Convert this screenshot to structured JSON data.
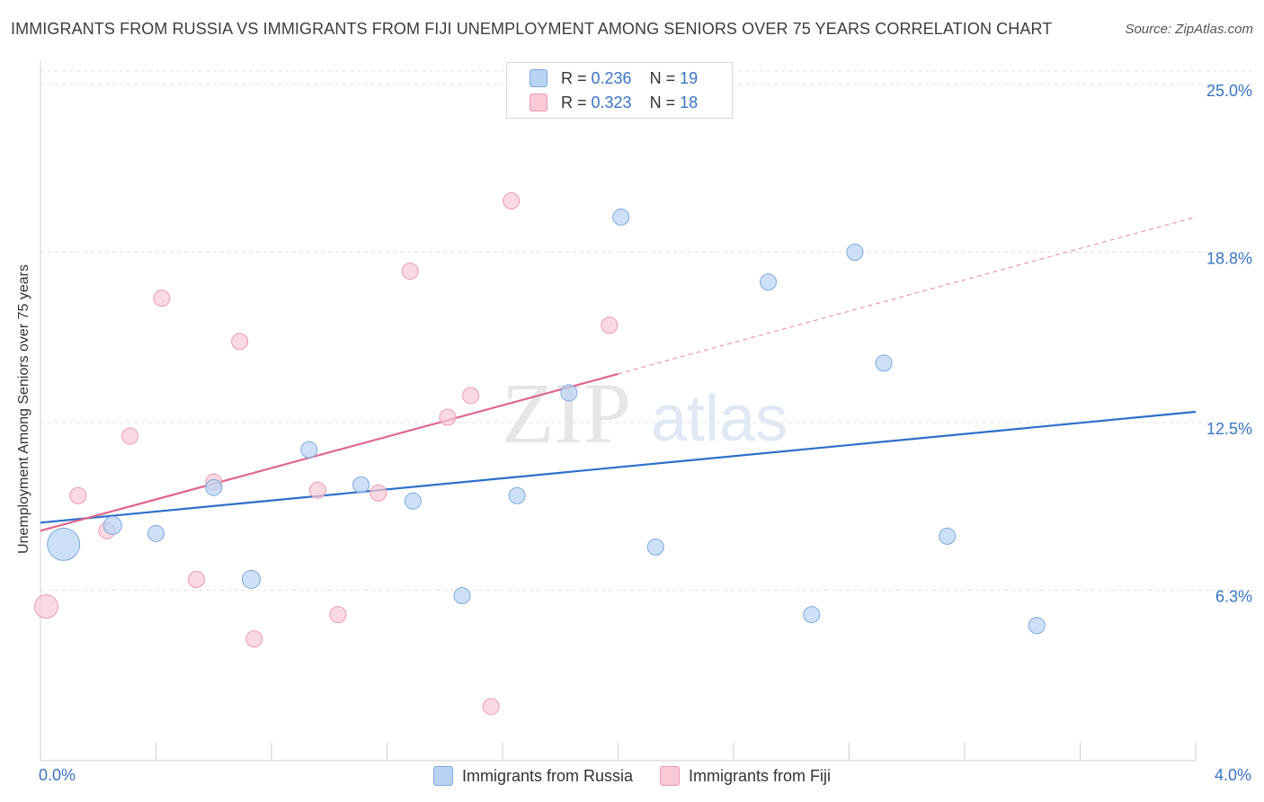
{
  "title": "IMMIGRANTS FROM RUSSIA VS IMMIGRANTS FROM FIJI UNEMPLOYMENT AMONG SENIORS OVER 75 YEARS CORRELATION CHART",
  "source": "Source: ZipAtlas.com",
  "watermark": "ZIPatlas",
  "legend": {
    "russia": {
      "r_label": "R = ",
      "r_value": "0.236",
      "n_label": "N = ",
      "n_value": "19"
    },
    "fiji": {
      "r_label": "R = ",
      "r_value": "0.323",
      "n_label": "N = ",
      "n_value": "18"
    }
  },
  "colors": {
    "russia_fill": "#b8d3f3",
    "russia_stroke": "#7fa9e0",
    "russia_line": "#2d6fcb",
    "fiji_fill": "#f9c9d6",
    "fiji_stroke": "#ec9ab3",
    "fiji_line": "#e0668f",
    "accent_text": "#3a73c4"
  },
  "chart_data": {
    "type": "scatter",
    "title": "IMMIGRANTS FROM RUSSIA VS IMMIGRANTS FROM FIJI UNEMPLOYMENT AMONG SENIORS OVER 75 YEARS CORRELATION CHART",
    "xlabel": "",
    "ylabel": "Unemployment Among Seniors over 75 years",
    "xlim": [
      0,
      4.0
    ],
    "ylim": [
      0,
      25.5
    ],
    "x_tick_labels": [
      "0.0%",
      "4.0%"
    ],
    "y_ticks": [
      6.3,
      12.5,
      18.8,
      25.0
    ],
    "y_tick_labels": [
      "6.3%",
      "12.5%",
      "18.8%",
      "25.0%"
    ],
    "series": [
      {
        "name": "Immigrants from Russia",
        "trend": {
          "x": [
            0.0,
            4.0
          ],
          "y": [
            8.8,
            12.9
          ]
        },
        "points": [
          {
            "x": 0.08,
            "y": 8.0,
            "size": 36
          },
          {
            "x": 0.25,
            "y": 8.7,
            "size": 20
          },
          {
            "x": 0.4,
            "y": 8.4,
            "size": 18
          },
          {
            "x": 0.6,
            "y": 10.1,
            "size": 18
          },
          {
            "x": 0.73,
            "y": 6.7,
            "size": 20
          },
          {
            "x": 0.93,
            "y": 11.5,
            "size": 18
          },
          {
            "x": 1.11,
            "y": 10.2,
            "size": 18
          },
          {
            "x": 1.29,
            "y": 9.6,
            "size": 18
          },
          {
            "x": 1.46,
            "y": 6.1,
            "size": 18
          },
          {
            "x": 1.65,
            "y": 9.8,
            "size": 18
          },
          {
            "x": 1.83,
            "y": 13.6,
            "size": 18
          },
          {
            "x": 2.01,
            "y": 20.1,
            "size": 18
          },
          {
            "x": 2.13,
            "y": 7.9,
            "size": 18
          },
          {
            "x": 2.52,
            "y": 17.7,
            "size": 18
          },
          {
            "x": 2.67,
            "y": 5.4,
            "size": 18
          },
          {
            "x": 2.82,
            "y": 18.8,
            "size": 18
          },
          {
            "x": 2.92,
            "y": 14.7,
            "size": 18
          },
          {
            "x": 3.14,
            "y": 8.3,
            "size": 18
          },
          {
            "x": 3.45,
            "y": 5.0,
            "size": 18
          }
        ]
      },
      {
        "name": "Immigrants from Fiji",
        "trend": {
          "x": [
            0.0,
            2.0
          ],
          "y": [
            8.5,
            14.3
          ]
        },
        "trend_extension": {
          "x": [
            2.0,
            4.0
          ],
          "y": [
            14.3,
            20.1
          ]
        },
        "points": [
          {
            "x": 0.02,
            "y": 5.7,
            "size": 26
          },
          {
            "x": 0.13,
            "y": 9.8,
            "size": 18
          },
          {
            "x": 0.23,
            "y": 8.5,
            "size": 18
          },
          {
            "x": 0.31,
            "y": 12.0,
            "size": 18
          },
          {
            "x": 0.42,
            "y": 17.1,
            "size": 18
          },
          {
            "x": 0.54,
            "y": 6.7,
            "size": 18
          },
          {
            "x": 0.6,
            "y": 10.3,
            "size": 18
          },
          {
            "x": 0.69,
            "y": 15.5,
            "size": 18
          },
          {
            "x": 0.74,
            "y": 4.5,
            "size": 18
          },
          {
            "x": 0.96,
            "y": 10.0,
            "size": 18
          },
          {
            "x": 1.03,
            "y": 5.4,
            "size": 18
          },
          {
            "x": 1.17,
            "y": 9.9,
            "size": 18
          },
          {
            "x": 1.28,
            "y": 18.1,
            "size": 18
          },
          {
            "x": 1.41,
            "y": 12.7,
            "size": 18
          },
          {
            "x": 1.49,
            "y": 13.5,
            "size": 18
          },
          {
            "x": 1.56,
            "y": 2.0,
            "size": 18
          },
          {
            "x": 1.63,
            "y": 20.7,
            "size": 18
          },
          {
            "x": 1.97,
            "y": 16.1,
            "size": 18
          }
        ]
      }
    ]
  }
}
